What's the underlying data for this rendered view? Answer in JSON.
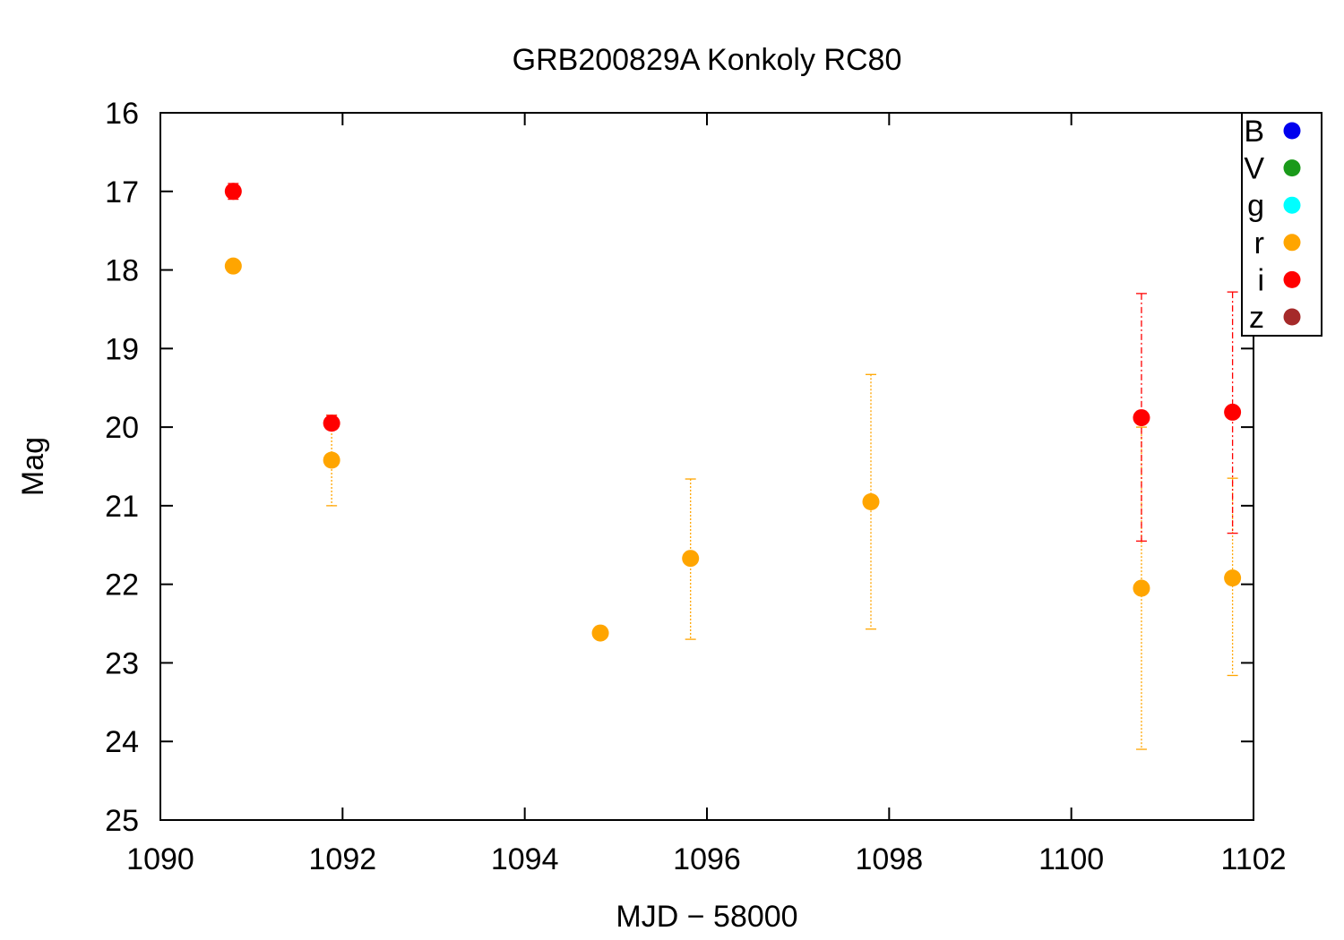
{
  "chart_data": {
    "type": "scatter",
    "title": "GRB200829A Konkoly RC80",
    "xlabel": "MJD − 58000",
    "ylabel": "Mag",
    "xlim": [
      1090,
      1102
    ],
    "ylim": [
      16,
      25
    ],
    "y_inverted": true,
    "xticks": [
      1090,
      1092,
      1094,
      1096,
      1098,
      1100,
      1102
    ],
    "yticks": [
      16,
      17,
      18,
      19,
      20,
      21,
      22,
      23,
      24,
      25
    ],
    "grid": false,
    "legend_position": "top-right",
    "series": [
      {
        "name": "B",
        "color": "#0000ee",
        "points": []
      },
      {
        "name": "V",
        "color": "#1a9a1a",
        "points": []
      },
      {
        "name": "g",
        "color": "#00ffff",
        "points": []
      },
      {
        "name": "r",
        "color": "#ffa500",
        "errorbar_style": "dotted",
        "points": [
          {
            "x": 1090.8,
            "y": 17.95,
            "yerr": [
              17.95,
              17.95
            ]
          },
          {
            "x": 1091.88,
            "y": 20.42,
            "yerr": [
              19.85,
              21.0
            ]
          },
          {
            "x": 1094.83,
            "y": 22.62,
            "yerr": [
              22.62,
              22.62
            ]
          },
          {
            "x": 1095.82,
            "y": 21.67,
            "yerr": [
              20.66,
              22.7
            ]
          },
          {
            "x": 1097.8,
            "y": 20.95,
            "yerr": [
              19.33,
              22.57
            ]
          },
          {
            "x": 1100.77,
            "y": 22.05,
            "yerr": [
              20.0,
              24.1
            ]
          },
          {
            "x": 1101.77,
            "y": 21.92,
            "yerr": [
              20.65,
              23.16
            ]
          }
        ]
      },
      {
        "name": "i",
        "color": "#ff0000",
        "errorbar_style": "dashdot",
        "points": [
          {
            "x": 1090.8,
            "y": 17.0,
            "yerr": [
              16.9,
              17.1
            ]
          },
          {
            "x": 1091.88,
            "y": 19.95,
            "yerr": [
              19.85,
              20.0
            ]
          },
          {
            "x": 1100.77,
            "y": 19.88,
            "yerr": [
              18.3,
              21.45
            ]
          },
          {
            "x": 1101.77,
            "y": 19.81,
            "yerr": [
              18.28,
              21.35
            ]
          }
        ]
      },
      {
        "name": "z",
        "color": "#a52a2a",
        "points": []
      }
    ]
  }
}
